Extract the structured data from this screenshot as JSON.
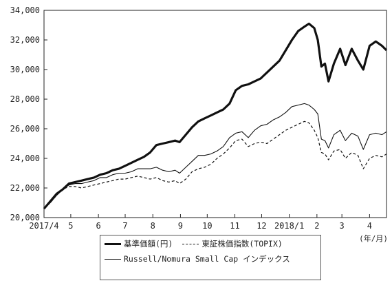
{
  "chart_data": {
    "type": "line",
    "title": "",
    "xlabel": "",
    "ylabel": "",
    "x_unit_label": "(年/月)",
    "ylim": [
      20000,
      34000
    ],
    "y_ticks": [
      20000,
      22000,
      24000,
      26000,
      28000,
      30000,
      32000,
      34000
    ],
    "y_tick_labels": [
      "20,000",
      "22,000",
      "24,000",
      "26,000",
      "28,000",
      "30,000",
      "32,000",
      "34,000"
    ],
    "x_range": [
      "2017-04-01",
      "2018-04-20"
    ],
    "x_ticks": [
      {
        "date": "2017-04-01",
        "label": "2017/4"
      },
      {
        "date": "2017-05-01",
        "label": "5"
      },
      {
        "date": "2017-06-01",
        "label": "6"
      },
      {
        "date": "2017-07-01",
        "label": "7"
      },
      {
        "date": "2017-08-01",
        "label": "8"
      },
      {
        "date": "2017-09-01",
        "label": "9"
      },
      {
        "date": "2017-10-01",
        "label": "10"
      },
      {
        "date": "2017-11-01",
        "label": "11"
      },
      {
        "date": "2017-12-01",
        "label": "12"
      },
      {
        "date": "2018-01-01",
        "label": "2018/1"
      },
      {
        "date": "2018-02-01",
        "label": "2"
      },
      {
        "date": "2018-03-01",
        "label": "3"
      },
      {
        "date": "2018-04-01",
        "label": "4"
      }
    ],
    "grid": false,
    "legend_position": "bottom",
    "series": [
      {
        "name": "基準価額(円)",
        "style": "thick-solid",
        "points": [
          [
            "2017-04-01",
            20600
          ],
          [
            "2017-04-08",
            21100
          ],
          [
            "2017-04-15",
            21600
          ],
          [
            "2017-04-22",
            21900
          ],
          [
            "2017-04-29",
            22300
          ],
          [
            "2017-05-06",
            22400
          ],
          [
            "2017-05-13",
            22500
          ],
          [
            "2017-05-20",
            22600
          ],
          [
            "2017-05-27",
            22700
          ],
          [
            "2017-06-03",
            22900
          ],
          [
            "2017-06-10",
            23000
          ],
          [
            "2017-06-17",
            23200
          ],
          [
            "2017-06-24",
            23300
          ],
          [
            "2017-07-01",
            23500
          ],
          [
            "2017-07-08",
            23700
          ],
          [
            "2017-07-15",
            23900
          ],
          [
            "2017-07-22",
            24100
          ],
          [
            "2017-07-29",
            24400
          ],
          [
            "2017-08-05",
            24900
          ],
          [
            "2017-08-12",
            25000
          ],
          [
            "2017-08-19",
            25100
          ],
          [
            "2017-08-26",
            25200
          ],
          [
            "2017-08-31",
            25100
          ],
          [
            "2017-09-07",
            25600
          ],
          [
            "2017-09-14",
            26100
          ],
          [
            "2017-09-21",
            26500
          ],
          [
            "2017-09-28",
            26700
          ],
          [
            "2017-10-05",
            26900
          ],
          [
            "2017-10-12",
            27100
          ],
          [
            "2017-10-19",
            27300
          ],
          [
            "2017-10-26",
            27700
          ],
          [
            "2017-11-02",
            28600
          ],
          [
            "2017-11-09",
            28900
          ],
          [
            "2017-11-16",
            29000
          ],
          [
            "2017-11-23",
            29200
          ],
          [
            "2017-11-30",
            29400
          ],
          [
            "2017-12-07",
            29800
          ],
          [
            "2017-12-14",
            30200
          ],
          [
            "2017-12-21",
            30600
          ],
          [
            "2017-12-28",
            31300
          ],
          [
            "2018-01-04",
            32000
          ],
          [
            "2018-01-11",
            32600
          ],
          [
            "2018-01-18",
            32900
          ],
          [
            "2018-01-23",
            33100
          ],
          [
            "2018-01-29",
            32800
          ],
          [
            "2018-02-02",
            32000
          ],
          [
            "2018-02-06",
            30200
          ],
          [
            "2018-02-10",
            30400
          ],
          [
            "2018-02-14",
            29200
          ],
          [
            "2018-02-20",
            30400
          ],
          [
            "2018-02-27",
            31400
          ],
          [
            "2018-03-05",
            30300
          ],
          [
            "2018-03-12",
            31400
          ],
          [
            "2018-03-19",
            30600
          ],
          [
            "2018-03-25",
            30000
          ],
          [
            "2018-04-01",
            31600
          ],
          [
            "2018-04-08",
            31900
          ],
          [
            "2018-04-15",
            31600
          ],
          [
            "2018-04-20",
            31300
          ]
        ]
      },
      {
        "name": "東証株価指数(TOPIX)",
        "style": "dashed",
        "points": [
          [
            "2017-04-01",
            20600
          ],
          [
            "2017-04-08",
            21000
          ],
          [
            "2017-04-15",
            21500
          ],
          [
            "2017-04-22",
            21900
          ],
          [
            "2017-04-29",
            22100
          ],
          [
            "2017-05-06",
            22100
          ],
          [
            "2017-05-13",
            22000
          ],
          [
            "2017-05-20",
            22100
          ],
          [
            "2017-05-27",
            22200
          ],
          [
            "2017-06-03",
            22300
          ],
          [
            "2017-06-10",
            22400
          ],
          [
            "2017-06-17",
            22500
          ],
          [
            "2017-06-24",
            22600
          ],
          [
            "2017-07-01",
            22600
          ],
          [
            "2017-07-08",
            22700
          ],
          [
            "2017-07-15",
            22800
          ],
          [
            "2017-07-22",
            22700
          ],
          [
            "2017-07-29",
            22600
          ],
          [
            "2017-08-05",
            22700
          ],
          [
            "2017-08-12",
            22500
          ],
          [
            "2017-08-19",
            22400
          ],
          [
            "2017-08-26",
            22500
          ],
          [
            "2017-08-31",
            22300
          ],
          [
            "2017-09-07",
            22600
          ],
          [
            "2017-09-14",
            23100
          ],
          [
            "2017-09-21",
            23300
          ],
          [
            "2017-09-28",
            23400
          ],
          [
            "2017-10-05",
            23600
          ],
          [
            "2017-10-12",
            24000
          ],
          [
            "2017-10-19",
            24300
          ],
          [
            "2017-10-26",
            24700
          ],
          [
            "2017-11-02",
            25200
          ],
          [
            "2017-11-09",
            25300
          ],
          [
            "2017-11-16",
            24800
          ],
          [
            "2017-11-23",
            25000
          ],
          [
            "2017-11-30",
            25100
          ],
          [
            "2017-12-07",
            25000
          ],
          [
            "2017-12-14",
            25300
          ],
          [
            "2017-12-21",
            25600
          ],
          [
            "2017-12-28",
            25900
          ],
          [
            "2018-01-04",
            26100
          ],
          [
            "2018-01-11",
            26300
          ],
          [
            "2018-01-18",
            26500
          ],
          [
            "2018-01-23",
            26400
          ],
          [
            "2018-01-29",
            25900
          ],
          [
            "2018-02-02",
            25400
          ],
          [
            "2018-02-06",
            24400
          ],
          [
            "2018-02-10",
            24300
          ],
          [
            "2018-02-14",
            23900
          ],
          [
            "2018-02-20",
            24500
          ],
          [
            "2018-02-27",
            24600
          ],
          [
            "2018-03-05",
            24000
          ],
          [
            "2018-03-12",
            24400
          ],
          [
            "2018-03-19",
            24200
          ],
          [
            "2018-03-25",
            23300
          ],
          [
            "2018-04-01",
            24000
          ],
          [
            "2018-04-08",
            24200
          ],
          [
            "2018-04-15",
            24100
          ],
          [
            "2018-04-20",
            24300
          ]
        ]
      },
      {
        "name": "Russell/Nomura Small Cap インデックス",
        "style": "thin-solid",
        "points": [
          [
            "2017-04-01",
            20600
          ],
          [
            "2017-04-08",
            21000
          ],
          [
            "2017-04-15",
            21500
          ],
          [
            "2017-04-22",
            21900
          ],
          [
            "2017-04-29",
            22200
          ],
          [
            "2017-05-06",
            22300
          ],
          [
            "2017-05-13",
            22300
          ],
          [
            "2017-05-20",
            22400
          ],
          [
            "2017-05-27",
            22500
          ],
          [
            "2017-06-03",
            22700
          ],
          [
            "2017-06-10",
            22700
          ],
          [
            "2017-06-17",
            22900
          ],
          [
            "2017-06-24",
            23000
          ],
          [
            "2017-07-01",
            23000
          ],
          [
            "2017-07-08",
            23100
          ],
          [
            "2017-07-15",
            23300
          ],
          [
            "2017-07-22",
            23300
          ],
          [
            "2017-07-29",
            23300
          ],
          [
            "2017-08-05",
            23400
          ],
          [
            "2017-08-12",
            23200
          ],
          [
            "2017-08-19",
            23100
          ],
          [
            "2017-08-26",
            23200
          ],
          [
            "2017-08-31",
            23000
          ],
          [
            "2017-09-07",
            23400
          ],
          [
            "2017-09-14",
            23800
          ],
          [
            "2017-09-21",
            24200
          ],
          [
            "2017-09-28",
            24200
          ],
          [
            "2017-10-05",
            24300
          ],
          [
            "2017-10-12",
            24500
          ],
          [
            "2017-10-19",
            24800
          ],
          [
            "2017-10-26",
            25400
          ],
          [
            "2017-11-02",
            25700
          ],
          [
            "2017-11-09",
            25800
          ],
          [
            "2017-11-16",
            25400
          ],
          [
            "2017-11-23",
            25900
          ],
          [
            "2017-11-30",
            26200
          ],
          [
            "2017-12-07",
            26300
          ],
          [
            "2017-12-14",
            26600
          ],
          [
            "2017-12-21",
            26800
          ],
          [
            "2017-12-28",
            27100
          ],
          [
            "2018-01-04",
            27500
          ],
          [
            "2018-01-11",
            27600
          ],
          [
            "2018-01-18",
            27700
          ],
          [
            "2018-01-23",
            27600
          ],
          [
            "2018-01-29",
            27300
          ],
          [
            "2018-02-02",
            27000
          ],
          [
            "2018-02-06",
            25300
          ],
          [
            "2018-02-10",
            25200
          ],
          [
            "2018-02-14",
            24700
          ],
          [
            "2018-02-20",
            25600
          ],
          [
            "2018-02-27",
            25900
          ],
          [
            "2018-03-05",
            25200
          ],
          [
            "2018-03-12",
            25700
          ],
          [
            "2018-03-19",
            25500
          ],
          [
            "2018-03-25",
            24600
          ],
          [
            "2018-04-01",
            25600
          ],
          [
            "2018-04-08",
            25700
          ],
          [
            "2018-04-15",
            25600
          ],
          [
            "2018-04-20",
            25800
          ]
        ]
      }
    ]
  }
}
